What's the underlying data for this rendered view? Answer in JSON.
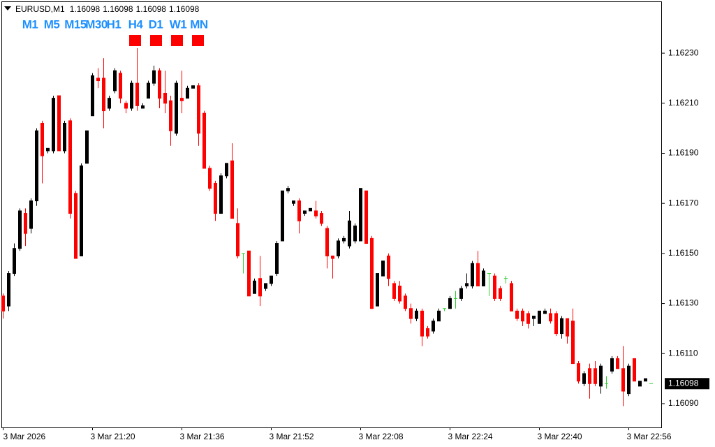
{
  "header": {
    "symbol": "EURUSD,M1",
    "prices": [
      1.16098,
      1.16098,
      1.16098,
      1.16098
    ]
  },
  "timeframes": [
    "M1",
    "M5",
    "M15",
    "M30",
    "H1",
    "H4",
    "D1",
    "W1",
    "MN"
  ],
  "chart_data": {
    "type": "candlestick",
    "x": [
      "3 Mar 2026",
      null,
      null,
      null,
      null,
      null,
      null,
      null,
      null,
      null,
      null,
      null,
      null,
      null,
      null,
      null,
      "3 Mar 21:20",
      null,
      null,
      null,
      null,
      null,
      null,
      null,
      null,
      null,
      null,
      null,
      null,
      null,
      null,
      null,
      "3 Mar 21:36",
      null,
      null,
      null,
      null,
      null,
      null,
      null,
      null,
      null,
      null,
      null,
      null,
      null,
      null,
      null,
      "3 Mar 21:52",
      null,
      null,
      null,
      null,
      null,
      null,
      null,
      null,
      null,
      null,
      null,
      null,
      null,
      null,
      null,
      "3 Mar 22:08",
      null,
      null,
      null,
      null,
      null,
      null,
      null,
      null,
      null,
      null,
      null,
      null,
      null,
      null,
      null,
      "3 Mar 22:24",
      null,
      null,
      null,
      null,
      null,
      null,
      null,
      null,
      null,
      null,
      null,
      null,
      null,
      null,
      null,
      "3 Mar 22:40",
      null,
      null,
      null,
      null,
      null,
      null,
      null,
      null,
      null,
      null,
      null,
      null,
      null,
      null,
      null,
      "3 Mar 22:56",
      null,
      null,
      null,
      null
    ],
    "open": [
      1.16133,
      1.16129,
      1.16142,
      1.16152,
      1.16166,
      1.1616,
      1.16171,
      1.16202,
      1.16191,
      1.16191,
      1.16213,
      1.16191,
      1.16203,
      1.16174,
      1.16149,
      1.16186,
      1.16205,
      1.1622,
      1.1622,
      1.16208,
      1.16215,
      1.16222,
      1.1621,
      1.16208,
      1.16218,
      1.16208,
      1.16212,
      1.16218,
      1.16223,
      1.16214,
      1.16211,
      1.16198,
      1.16212,
      1.16212,
      1.16216,
      1.16217,
      1.16206,
      1.16184,
      1.16178,
      1.16166,
      1.16181,
      1.16187,
      1.16162,
      1.1615,
      1.16151,
      1.16134,
      1.1614,
      1.16136,
      1.16138,
      1.16142,
      1.16155,
      1.16175,
      1.1617,
      1.16171,
      1.16166,
      1.16167,
      1.16167,
      1.16166,
      1.1616,
      1.16149,
      1.16149,
      1.16155,
      1.16153,
      1.16155,
      1.16155,
      1.16175,
      1.16156,
      1.16129,
      1.16141,
      1.16149,
      1.16138,
      1.16137,
      1.16133,
      1.16128,
      1.16124,
      1.16127,
      1.1612,
      1.16119,
      1.16123,
      1.16128,
      1.16128,
      1.16132,
      1.16132,
      1.16137,
      1.16137,
      1.16146,
      1.16137,
      1.16142,
      1.16141,
      1.16136,
      1.1614,
      1.16138,
      1.16127,
      1.16127,
      1.16126,
      1.16124,
      1.16122,
      1.16126,
      1.16126,
      1.16126,
      1.16118,
      1.16124,
      1.16123,
      1.16106,
      1.16098,
      1.16104,
      1.16104,
      1.16097,
      1.16098,
      1.16103,
      1.16108,
      1.16104,
      1.16094,
      1.16108,
      1.16097,
      1.16099,
      1.16098
    ],
    "high": [
      1.16134,
      1.16143,
      1.16154,
      1.16168,
      1.16168,
      1.16172,
      1.162,
      1.16203,
      1.16192,
      1.16213,
      1.16213,
      1.16203,
      1.16204,
      1.16175,
      1.16186,
      1.16199,
      1.16222,
      1.16224,
      1.16228,
      1.16213,
      1.16224,
      1.16223,
      1.16211,
      1.16219,
      1.16232,
      1.1621,
      1.16219,
      1.16225,
      1.16224,
      1.16223,
      1.16213,
      1.16219,
      1.16223,
      1.16217,
      1.16217,
      1.16218,
      1.16207,
      1.16185,
      1.16179,
      1.16182,
      1.16186,
      1.16194,
      1.16168,
      1.1615,
      1.16151,
      1.1614,
      1.16149,
      1.16138,
      1.16141,
      1.16155,
      1.16175,
      1.16177,
      1.16171,
      1.16172,
      1.16167,
      1.16168,
      1.16171,
      1.16167,
      1.16161,
      1.16149,
      1.16156,
      1.16157,
      1.16167,
      1.16162,
      1.16176,
      1.16175,
      1.16157,
      1.16142,
      1.16147,
      1.1615,
      1.16139,
      1.16139,
      1.16134,
      1.1613,
      1.16128,
      1.16128,
      1.16121,
      1.16124,
      1.16128,
      1.16128,
      1.16133,
      1.16135,
      1.16137,
      1.16142,
      1.16147,
      1.16151,
      1.16144,
      1.16142,
      1.16142,
      1.16137,
      1.16141,
      1.16139,
      1.16128,
      1.16128,
      1.16127,
      1.16125,
      1.16127,
      1.16128,
      1.16128,
      1.16127,
      1.16125,
      1.16124,
      1.16128,
      1.16107,
      1.16103,
      1.16106,
      1.16107,
      1.16106,
      1.16101,
      1.16109,
      1.16109,
      1.16113,
      1.16106,
      1.16108,
      1.16099,
      1.161,
      1.16098
    ],
    "low": [
      1.16124,
      1.16127,
      1.16141,
      1.16151,
      1.16153,
      1.16158,
      1.16169,
      1.16178,
      1.1619,
      1.1619,
      1.16191,
      1.1619,
      1.16164,
      1.16148,
      1.16149,
      1.16186,
      1.16205,
      1.16216,
      1.162,
      1.16207,
      1.16214,
      1.1621,
      1.16206,
      1.16207,
      1.16207,
      1.16208,
      1.16212,
      1.16217,
      1.16208,
      1.16206,
      1.16193,
      1.16197,
      1.16206,
      1.16212,
      1.16216,
      1.16193,
      1.16184,
      1.16175,
      1.16163,
      1.16166,
      1.1618,
      1.16164,
      1.16148,
      1.16142,
      1.16133,
      1.16134,
      1.16129,
      1.16135,
      1.16137,
      1.16141,
      1.16155,
      1.16174,
      1.16169,
      1.16158,
      1.16165,
      1.16167,
      1.16164,
      1.16161,
      1.16144,
      1.1614,
      1.16148,
      1.16154,
      1.16152,
      1.16154,
      1.16155,
      1.16154,
      1.16128,
      1.16129,
      1.16141,
      1.16137,
      1.16131,
      1.1613,
      1.16127,
      1.16122,
      1.16123,
      1.16113,
      1.16116,
      1.16118,
      1.16123,
      1.16127,
      1.16128,
      1.16128,
      1.16131,
      1.16136,
      1.16136,
      1.16137,
      1.16137,
      1.16133,
      1.16131,
      1.16131,
      1.16138,
      1.16127,
      1.16123,
      1.16121,
      1.1612,
      1.16121,
      1.16122,
      1.16126,
      1.16122,
      1.16117,
      1.16116,
      1.16114,
      1.16106,
      1.16098,
      1.16097,
      1.16092,
      1.16097,
      1.16094,
      1.16096,
      1.16102,
      1.16104,
      1.16089,
      1.16093,
      1.16099,
      1.16097,
      1.16099,
      1.16098
    ],
    "close": [
      1.16127,
      1.16142,
      1.16152,
      1.16167,
      1.16158,
      1.16171,
      1.16199,
      1.16189,
      1.16192,
      1.16212,
      1.16191,
      1.16202,
      1.16166,
      1.16148,
      1.16185,
      1.16199,
      1.16221,
      1.16219,
      1.16207,
      1.16212,
      1.16223,
      1.16212,
      1.16208,
      1.16218,
      1.16209,
      1.16209,
      1.16218,
      1.16223,
      1.16212,
      1.1621,
      1.16199,
      1.16218,
      1.16211,
      1.16216,
      1.16217,
      1.16198,
      1.16184,
      1.16176,
      1.16166,
      1.16181,
      1.16186,
      1.16164,
      1.16149,
      1.1615,
      1.16133,
      1.16139,
      1.16133,
      1.16138,
      1.16141,
      1.16154,
      1.16175,
      1.16176,
      1.16171,
      1.16163,
      1.16167,
      1.16168,
      1.16165,
      1.16162,
      1.16149,
      1.16148,
      1.16155,
      1.16156,
      1.16163,
      1.16161,
      1.16176,
      1.16154,
      1.16128,
      1.16142,
      1.16147,
      1.1614,
      1.16132,
      1.16131,
      1.16128,
      1.16124,
      1.16127,
      1.16117,
      1.16117,
      1.16123,
      1.16127,
      1.16128,
      1.16132,
      1.16132,
      1.16136,
      1.16138,
      1.16146,
      1.16137,
      1.16143,
      1.16142,
      1.16132,
      1.16132,
      1.1614,
      1.16127,
      1.16124,
      1.16123,
      1.16122,
      1.16125,
      1.16127,
      1.16127,
      1.16123,
      1.16118,
      1.16124,
      1.16117,
      1.16106,
      1.16099,
      1.16102,
      1.16098,
      1.16098,
      1.16105,
      1.16098,
      1.16108,
      1.16104,
      1.16095,
      1.16105,
      1.16099,
      1.16099,
      1.161,
      1.16098
    ],
    "colors": {
      "up": "#000000",
      "down": "#ff0000",
      "doji": "#32cd32"
    },
    "ylim": [
      1.160805,
      1.162504
    ],
    "yticks": [
      {
        "value": 1.1609,
        "label": "1.16090"
      },
      {
        "value": 1.1611,
        "label": "1.16110"
      },
      {
        "value": 1.1613,
        "label": "1.16130"
      },
      {
        "value": 1.1615,
        "label": "1.16150"
      },
      {
        "value": 1.1617,
        "label": "1.16170"
      },
      {
        "value": 1.1619,
        "label": "1.16190"
      },
      {
        "value": 1.1621,
        "label": "1.16210"
      },
      {
        "value": 1.1623,
        "label": "1.16230"
      }
    ],
    "last_price": 1.16098,
    "grid": false
  }
}
